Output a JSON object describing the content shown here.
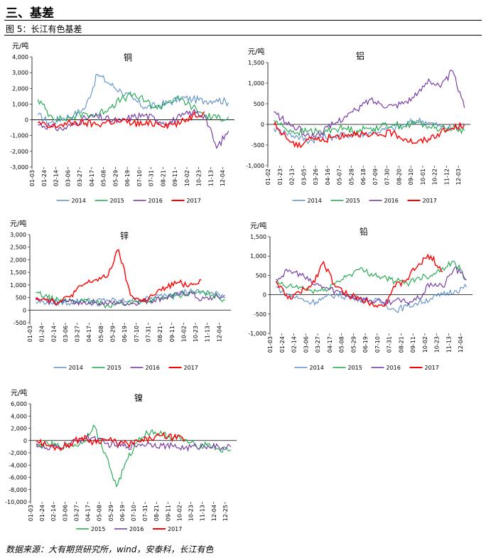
{
  "header": {
    "section_title": "三、基差",
    "figure_title": "图 5：长江有色基差",
    "source": "数据来源：大有期货研究所，wind，安泰科，长江有色"
  },
  "colors": {
    "2014": "#5b8fc8",
    "2015": "#1aa84a",
    "2016": "#7030a0",
    "2017": "#ff0000"
  },
  "chart_data": [
    {
      "type": "line",
      "title": "铜",
      "ylabel": "元/吨",
      "ylim": [
        -3000,
        4000
      ],
      "yticks": [
        "4,000",
        "3,000",
        "2,000",
        "1,000",
        "0",
        "-1,000",
        "-2,000",
        "-3,000"
      ],
      "x": [
        "01-03",
        "01-24",
        "02-14",
        "03-06",
        "03-27",
        "04-17",
        "05-08",
        "05-29",
        "06-19",
        "07-10",
        "07-31",
        "08-21",
        "09-11",
        "10-02",
        "10-23",
        "11-13",
        "12-04"
      ],
      "series": [
        {
          "name": "2014",
          "values": [
            300,
            -200,
            100,
            300,
            800,
            2900,
            2300,
            1800,
            1300,
            800,
            900,
            1100,
            1400,
            1300,
            1200,
            1300,
            1100
          ]
        },
        {
          "name": "2015",
          "values": [
            1300,
            300,
            0,
            200,
            400,
            300,
            800,
            1300,
            1600,
            1200,
            700,
            1200,
            1300,
            800,
            300,
            100,
            200
          ]
        },
        {
          "name": "2016",
          "values": [
            -300,
            -400,
            -600,
            -300,
            100,
            200,
            0,
            -100,
            200,
            300,
            0,
            -200,
            200,
            500,
            300,
            -1800,
            -700
          ]
        },
        {
          "name": "2017",
          "values": [
            -200,
            -500,
            -300,
            -200,
            -200,
            -300,
            -100,
            -100,
            -200,
            -300,
            -200,
            -300,
            -200,
            300,
            500,
            null,
            null
          ]
        }
      ]
    },
    {
      "type": "line",
      "title": "铝",
      "ylabel": "元/吨",
      "ylim": [
        -1000,
        1500
      ],
      "yticks": [
        "1,500",
        "1,000",
        "500",
        "0",
        "-500",
        "-1,000"
      ],
      "x": [
        "01-02",
        "01-23",
        "02-13",
        "03-05",
        "03-26",
        "04-16",
        "05-07",
        "05-28",
        "06-18",
        "07-09",
        "07-30",
        "08-20",
        "09-10",
        "10-01",
        "10-22",
        "11-12",
        "12-03"
      ],
      "series": [
        {
          "name": "2014",
          "values": [
            -100,
            -200,
            -300,
            -400,
            -300,
            -300,
            -250,
            -250,
            -200,
            -150,
            -100,
            0,
            100,
            50,
            -50,
            -100,
            0
          ]
        },
        {
          "name": "2015",
          "values": [
            100,
            -100,
            -200,
            -150,
            -200,
            -100,
            -100,
            -150,
            -100,
            -50,
            0,
            -50,
            50,
            -50,
            -100,
            -100,
            -150
          ]
        },
        {
          "name": "2016",
          "values": [
            300,
            50,
            -100,
            -300,
            -200,
            0,
            200,
            350,
            600,
            500,
            450,
            550,
            700,
            1100,
            900,
            1300,
            400
          ]
        },
        {
          "name": "2017",
          "values": [
            0,
            -300,
            -550,
            -300,
            -400,
            -300,
            -250,
            -200,
            -300,
            -250,
            -200,
            -350,
            -450,
            -350,
            -200,
            -100,
            0
          ]
        }
      ]
    },
    {
      "type": "line",
      "title": "锌",
      "ylabel": "元/吨",
      "ylim": [
        -500,
        3000
      ],
      "yticks": [
        "3,000",
        "2,500",
        "2,000",
        "1,500",
        "1,000",
        "500",
        "0",
        "-500"
      ],
      "x": [
        "01-03",
        "01-24",
        "02-14",
        "03-06",
        "03-27",
        "04-17",
        "05-08",
        "05-29",
        "06-19",
        "07-10",
        "07-31",
        "08-21",
        "09-11",
        "10-02",
        "10-23",
        "11-13",
        "12-04"
      ],
      "series": [
        {
          "name": "2014",
          "values": [
            300,
            350,
            300,
            300,
            400,
            350,
            400,
            350,
            400,
            400,
            500,
            600,
            700,
            750,
            700,
            650,
            600
          ]
        },
        {
          "name": "2015",
          "values": [
            700,
            500,
            350,
            400,
            350,
            300,
            200,
            250,
            300,
            350,
            400,
            500,
            600,
            650,
            700,
            600,
            400
          ]
        },
        {
          "name": "2016",
          "values": [
            400,
            350,
            300,
            350,
            300,
            300,
            250,
            300,
            250,
            350,
            400,
            500,
            600,
            700,
            400,
            500,
            500
          ]
        },
        {
          "name": "2017",
          "values": [
            500,
            450,
            300,
            600,
            1000,
            1200,
            1300,
            2400,
            600,
            350,
            600,
            900,
            1100,
            1000,
            1200,
            null,
            null
          ]
        }
      ]
    },
    {
      "type": "line",
      "title": "铅",
      "ylabel": "元/吨",
      "ylim": [
        -1000,
        1500
      ],
      "yticks": [
        "1,500",
        "1,000",
        "500",
        "0",
        "-500",
        "-1,000"
      ],
      "x": [
        "01-03",
        "01-24",
        "02-14",
        "03-06",
        "03-27",
        "04-17",
        "05-08",
        "05-29",
        "06-19",
        "07-10",
        "07-31",
        "08-21",
        "09-11",
        "10-02",
        "10-23",
        "11-13",
        "12-04"
      ],
      "series": [
        {
          "name": "2014",
          "values": [
            200,
            0,
            -100,
            -200,
            -100,
            0,
            -50,
            -100,
            -150,
            -200,
            -400,
            -300,
            -200,
            -100,
            0,
            100,
            200
          ]
        },
        {
          "name": "2015",
          "values": [
            300,
            200,
            200,
            100,
            100,
            300,
            500,
            650,
            550,
            450,
            350,
            300,
            450,
            500,
            700,
            850,
            400
          ]
        },
        {
          "name": "2016",
          "values": [
            400,
            600,
            550,
            300,
            200,
            100,
            0,
            -100,
            -150,
            -200,
            -150,
            -200,
            -100,
            300,
            200,
            700,
            400
          ]
        },
        {
          "name": "2017",
          "values": [
            350,
            -100,
            50,
            250,
            850,
            200,
            0,
            -100,
            -200,
            -300,
            200,
            400,
            800,
            1000,
            600,
            null,
            null
          ]
        }
      ]
    },
    {
      "type": "line",
      "title": "镍",
      "ylabel": "元/吨",
      "ylim": [
        -10000,
        6000
      ],
      "yticks": [
        "6,000",
        "4,000",
        "2,000",
        "0",
        "-2,000",
        "-4,000",
        "-6,000",
        "-8,000",
        "-10,000"
      ],
      "x": [
        "01-03",
        "01-24",
        "02-14",
        "03-06",
        "03-27",
        "04-17",
        "05-08",
        "05-29",
        "06-19",
        "07-10",
        "07-31",
        "08-21",
        "09-11",
        "10-02",
        "10-23",
        "11-13",
        "12-04",
        "12-25"
      ],
      "series": [
        {
          "name": "2015",
          "values": [
            -1000,
            -500,
            -1000,
            -800,
            -500,
            2500,
            -2000,
            -7500,
            -3000,
            500,
            1500,
            1000,
            500,
            0,
            -1000,
            -500,
            -1500,
            -1500
          ]
        },
        {
          "name": "2016",
          "values": [
            -500,
            -1500,
            -1000,
            -500,
            300,
            500,
            -500,
            -800,
            -1000,
            -600,
            -500,
            -800,
            -1000,
            -1200,
            -1000,
            -800,
            -1200,
            -1000
          ]
        },
        {
          "name": "2017",
          "values": [
            0,
            -800,
            -1200,
            -500,
            500,
            -200,
            200,
            -300,
            -600,
            -200,
            300,
            800,
            500,
            200,
            null,
            null,
            null,
            null
          ]
        }
      ]
    }
  ]
}
